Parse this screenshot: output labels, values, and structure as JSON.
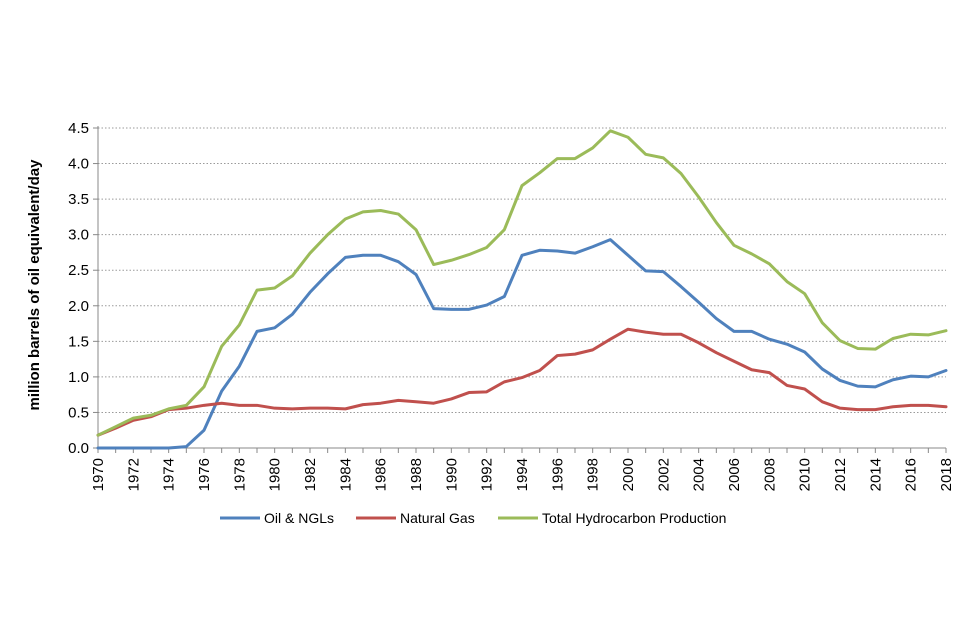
{
  "chart_data": {
    "type": "line",
    "title": "",
    "xlabel": "",
    "ylabel": "million barrels of oil equivalent/day",
    "ylim": [
      0,
      4.5
    ],
    "yticks": [
      "0.0",
      "0.5",
      "1.0",
      "1.5",
      "2.0",
      "2.5",
      "3.0",
      "3.5",
      "4.0",
      "4.5"
    ],
    "grid": true,
    "legend_position": "bottom",
    "x": [
      1970,
      1971,
      1972,
      1973,
      1974,
      1975,
      1976,
      1977,
      1978,
      1979,
      1980,
      1981,
      1982,
      1983,
      1984,
      1985,
      1986,
      1987,
      1988,
      1989,
      1990,
      1991,
      1992,
      1993,
      1994,
      1995,
      1996,
      1997,
      1998,
      1999,
      2000,
      2001,
      2002,
      2003,
      2004,
      2005,
      2006,
      2007,
      2008,
      2009,
      2010,
      2011,
      2012,
      2013,
      2014,
      2015,
      2016,
      2017,
      2018
    ],
    "xtick_labels": [
      "1970",
      "1972",
      "1974",
      "1976",
      "1978",
      "1980",
      "1982",
      "1984",
      "1986",
      "1988",
      "1990",
      "1992",
      "1994",
      "1996",
      "1998",
      "2000",
      "2002",
      "2004",
      "2006",
      "2008",
      "2010",
      "2012",
      "2014",
      "2016",
      "2018"
    ],
    "series": [
      {
        "name": "Oil & NGLs",
        "color": "#4f81bd",
        "values": [
          0.0,
          0.0,
          0.0,
          0.0,
          0.0,
          0.02,
          0.25,
          0.8,
          1.15,
          1.64,
          1.69,
          1.88,
          2.19,
          2.45,
          2.68,
          2.71,
          2.71,
          2.62,
          2.44,
          1.96,
          1.95,
          1.95,
          2.01,
          2.13,
          2.71,
          2.78,
          2.77,
          2.74,
          2.83,
          2.93,
          2.71,
          2.49,
          2.48,
          2.27,
          2.05,
          1.82,
          1.64,
          1.64,
          1.53,
          1.46,
          1.35,
          1.11,
          0.95,
          0.87,
          0.86,
          0.96,
          1.01,
          1.0,
          1.09
        ]
      },
      {
        "name": "Natural Gas",
        "color": "#c0504d",
        "values": [
          0.18,
          0.28,
          0.39,
          0.44,
          0.54,
          0.56,
          0.6,
          0.63,
          0.6,
          0.6,
          0.56,
          0.55,
          0.56,
          0.56,
          0.55,
          0.61,
          0.63,
          0.67,
          0.65,
          0.63,
          0.69,
          0.78,
          0.79,
          0.93,
          0.99,
          1.09,
          1.3,
          1.32,
          1.38,
          1.53,
          1.67,
          1.63,
          1.6,
          1.6,
          1.48,
          1.34,
          1.22,
          1.1,
          1.06,
          0.88,
          0.83,
          0.65,
          0.56,
          0.54,
          0.54,
          0.58,
          0.6,
          0.6,
          0.58
        ]
      },
      {
        "name": "Total Hydrocarbon Production",
        "color": "#9bbb59",
        "values": [
          0.18,
          0.3,
          0.42,
          0.46,
          0.55,
          0.6,
          0.86,
          1.43,
          1.73,
          2.22,
          2.25,
          2.42,
          2.74,
          3.0,
          3.22,
          3.32,
          3.34,
          3.29,
          3.07,
          2.58,
          2.64,
          2.72,
          2.82,
          3.07,
          3.69,
          3.87,
          4.07,
          4.07,
          4.22,
          4.46,
          4.37,
          4.13,
          4.08,
          3.86,
          3.53,
          3.17,
          2.85,
          2.73,
          2.59,
          2.34,
          2.17,
          1.76,
          1.51,
          1.4,
          1.39,
          1.54,
          1.6,
          1.59,
          1.65
        ]
      }
    ]
  }
}
